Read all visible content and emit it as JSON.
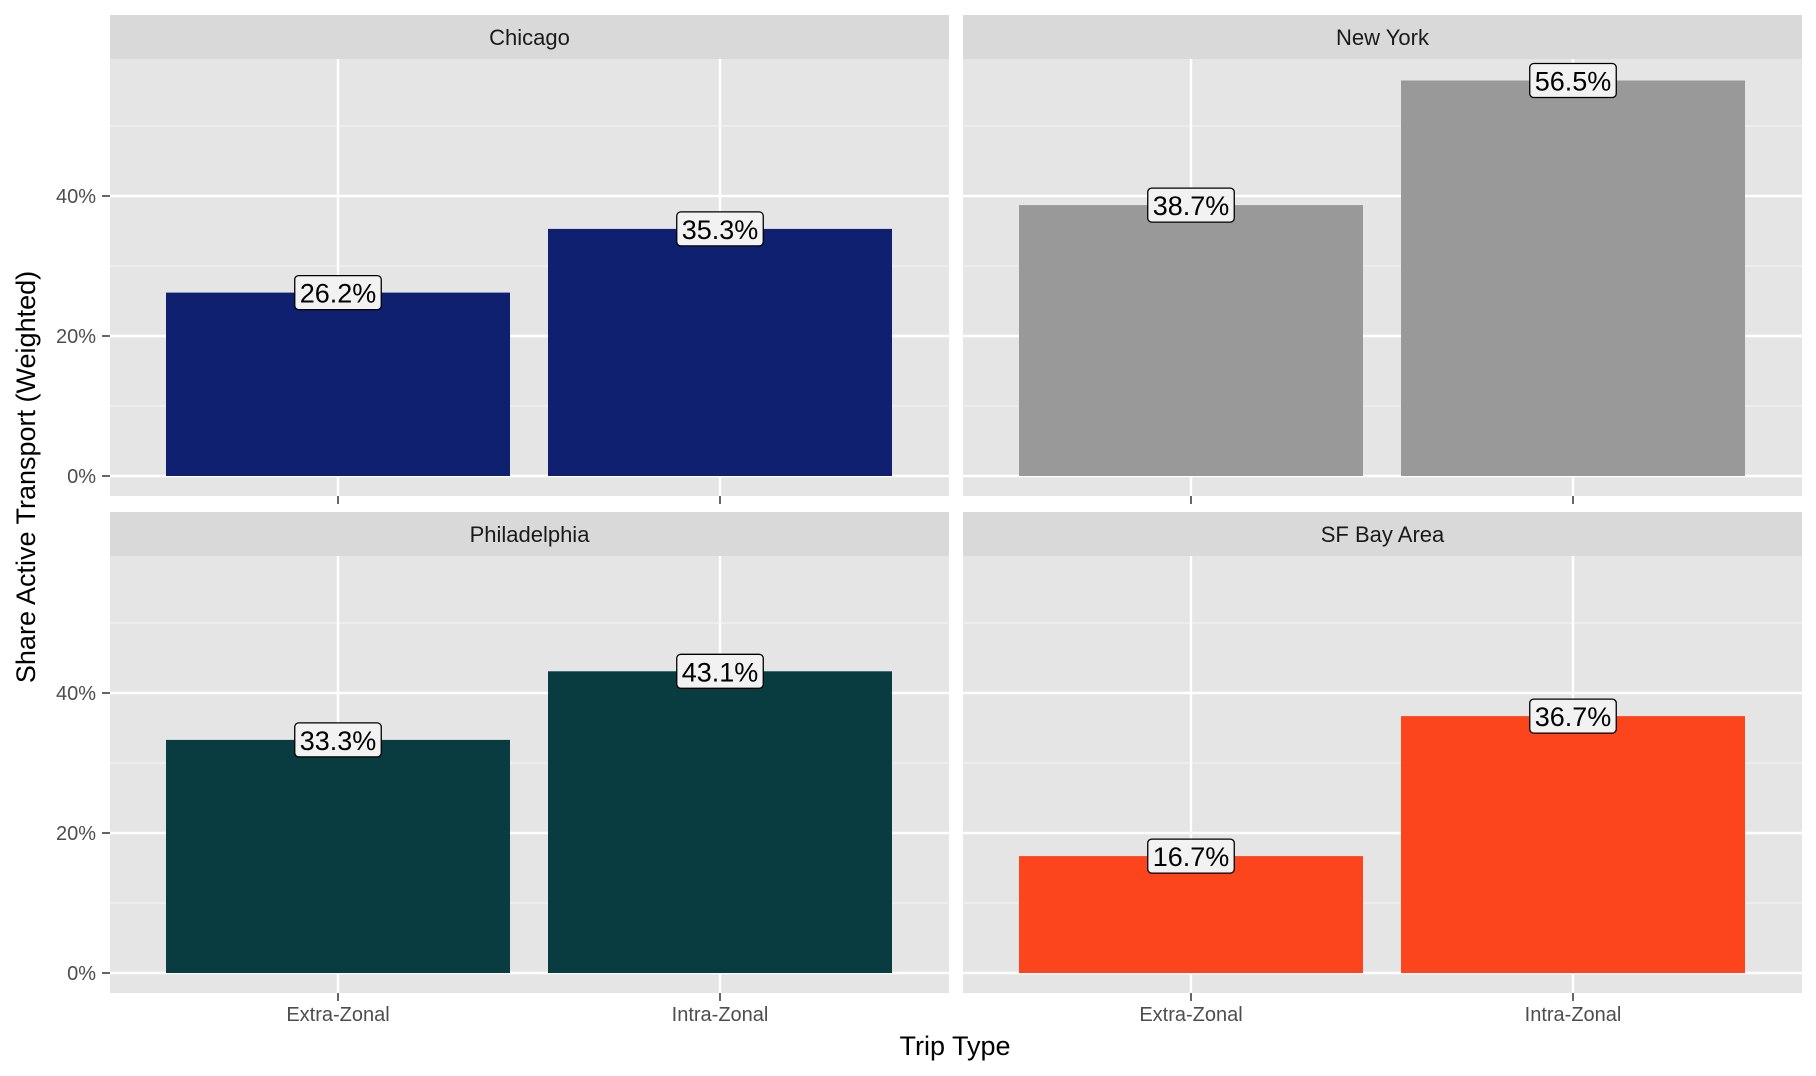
{
  "chart_data": {
    "type": "bar",
    "facet_layout": "2x2",
    "xlabel": "Trip Type",
    "ylabel": "Share Active Transport (Weighted)",
    "categories": [
      "Extra-Zonal",
      "Intra-Zonal"
    ],
    "ylim": [
      0,
      0.6
    ],
    "y_ticks": [
      0,
      0.2,
      0.4
    ],
    "y_tick_labels": [
      "0%",
      "20%",
      "40%"
    ],
    "grid": true,
    "legend": "none",
    "panels": [
      {
        "name": "Chicago",
        "color": "#0e206f",
        "values": [
          0.262,
          0.353
        ],
        "labels": [
          "26.2%",
          "35.3%"
        ]
      },
      {
        "name": "New York",
        "color": "#999999",
        "values": [
          0.387,
          0.565
        ],
        "labels": [
          "38.7%",
          "56.5%"
        ]
      },
      {
        "name": "Philadelphia",
        "color": "#093c41",
        "values": [
          0.333,
          0.431
        ],
        "labels": [
          "33.3%",
          "43.1%"
        ]
      },
      {
        "name": "SF Bay Area",
        "color": "#fc451d",
        "values": [
          0.167,
          0.367
        ],
        "labels": [
          "16.7%",
          "36.7%"
        ]
      }
    ]
  }
}
